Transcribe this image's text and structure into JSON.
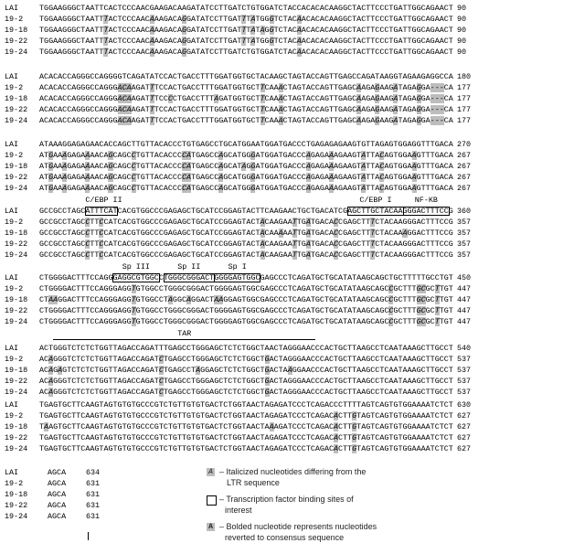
{
  "reference_label": "LAI",
  "colors": {
    "shade": "#bdbdbd"
  },
  "blocks": [
    {
      "rows": [
        {
          "label": "LAI",
          "seq": "TGGAAGGGCTAATTCACTCCCAACGAAGACAAGATATCCTTGATCTGTGGATCTACCACACACAAGGCTACTTCCCTGATTGGCAGAACT",
          "end": "90"
        },
        {
          "label": "19-2",
          "seq": "TGGAAGGGCTAATTTACTCCCAACAAAGACAGGATATCCTTGATTTATGGGTCTACAACACACAAGGCTACTTCCCTGATTGGCAGAACT",
          "end": "90"
        },
        {
          "label": "19-18",
          "seq": "TGGAAGGGCTAATTTACTCCCAACAAAGACAGGATATCCTTGATTTATAGGTCTACAACACACAAGGCTACTTCCCTGATTGGCAGAACT",
          "end": "90"
        },
        {
          "label": "19-22",
          "seq": "TGGAAGGGCTAATTTACTCCCAACAAAGACAGGATATCCTTGATTTATGGGTCTACAACACACAAGGCTACTTCCCTGATTGGCAGAACT",
          "end": "90"
        },
        {
          "label": "19-24",
          "seq": "TGGAAGGGCTAATTTACTCCCAACAAAGACAGGATATCCTTGATCTGTGGATCTACAACACACAAGGCTACTTCCCTGATTGGCAGAACT",
          "end": "90"
        }
      ],
      "annotations": []
    },
    {
      "rows": [
        {
          "label": "LAI",
          "seq": "ACACACCAGGGCCAGGGGTCAGATATCCACTGACCTTTGGATGGTGCTACAAGCTAGTACCAGTTGAGCCAGATAAGGTAGAAGAGGCCA",
          "end": "180"
        },
        {
          "label": "19-2",
          "seq": "ACACACCAGGGCCAGGGACAAGATTTCCACTGACCTTTGGATGGTGCTTCAAACTAGTACCAGTTGAGCAAGAGAAGATAGAGGA---CA",
          "end": "177"
        },
        {
          "label": "19-18",
          "seq": "ACACACCAGGGCCAGGGACAAGATTTCCCCTGACCTTTAGATGGTGCTTCAAACTAGTACCAGTTGAGCAAGAGAAGATAGAGGA---CA",
          "end": "177"
        },
        {
          "label": "19-22",
          "seq": "ACACACCAGGGCCAGGGACAAGATTTCCACTGACCTTTGGATGGTGCTTCAAACTAGTACCAGTTGAGCAAGAGAAGATAGAGGA---CA",
          "end": "177"
        },
        {
          "label": "19-24",
          "seq": "ACACACCAGGGCCAGGGACAAGATTTCCACTGACCTTTGGATGGTGCTTCAAACTAGTACCAGTTGAGCAAGAGAAGATAGAGGA---CA",
          "end": "177"
        }
      ],
      "annotations": []
    },
    {
      "rows": [
        {
          "label": "LAI",
          "seq": "ATAAAGGAGAGAACACCAGCTTGTTACACCCTGTGAGCCTGCATGGAATGGATGACCCTGAGAGAGAAGTGTTAGAGTGGAGGTTTGACA",
          "end": "270"
        },
        {
          "label": "19-2",
          "seq": "ATGAAAGAGAAAACAGCAGCCTGTTACACCCCATGAGCCAGCATGGGATGGATGACCCAGAGAAAGAAGTATTACAGTGGAAGTTTGACA",
          "end": "267"
        },
        {
          "label": "19-18",
          "seq": "ATGAAAGAGAAAACAGCAGCCTGTTACACCCCATGAGCCAGCATAGGATGGATGACCCAGAGAAAGAAGTATTACAGTGGAAGTTTGACA",
          "end": "267"
        },
        {
          "label": "19-22",
          "seq": "ATGAAAGAGAAAACAGCAGCCTGTTACACCCCATGAGCCAGCATGGGATGGATGACCCAGAGAAAGAAGTATTACAGTGGAAGTTTGACA",
          "end": "267"
        },
        {
          "label": "19-24",
          "seq": "ATGAAAGAGAAAACAGCAGCCTGTTACACCCCATGAGCCAGCATGGGATGGATGACCCAGAGAAAGAAGTATTACAGTGGAAGTTTGACA",
          "end": "267"
        }
      ],
      "annotations": []
    },
    {
      "rows": [
        {
          "label": "LAI",
          "seq": "GCCGCCTAGCATTTCATCACGTGGCCCGAGAGCTGCATCCGGAGTACTTCAAGAACTGCTGACATCGAGCTTGCTACAAGGGACTTTCCG",
          "end": "360"
        },
        {
          "label": "19-2",
          "seq": "GCCGCCTAGCCTTCCATCACGTGGCCCGAGAGCTGCATCCGGAGTACTACAAGAATTGATGACACCGAGCTTTCTACAAGGGACTTTCCG",
          "end": "357"
        },
        {
          "label": "19-18",
          "seq": "GCCGCCTAGCCTTCCATCACGTGGCCCGAGAGCTGCATCCGGAGTACTACAAAAATTGATGACACCGAGCTTTCTACAAAGGACTTTCCG",
          "end": "357"
        },
        {
          "label": "19-22",
          "seq": "GCCGCCTAGCCTTCCATCACGTGGCCCGAGAGCTGCATCCGGAGTACTACAAGAATTGATGACACCGAGCTTTCTACAAGGGACTTTCCG",
          "end": "357"
        },
        {
          "label": "19-24",
          "seq": "GCCGCCTAGCCTTCCATCACGTGGCCCGAGAGCTGCATCCGGAGTACTACAAGAATTGATGACACCGAGCTTTCTACAAGGGACTTTCCG",
          "end": "357"
        }
      ],
      "annotations": [
        {
          "name": "C/EBP II",
          "site": "ATTTCAT",
          "style": "box"
        },
        {
          "name": "C/EBP I",
          "site": "AGCTTGCTACAA",
          "style": "box"
        },
        {
          "name": "NF-KB",
          "site": "GGGACTTTCC",
          "style": "box"
        }
      ]
    },
    {
      "rows": [
        {
          "label": "LAI",
          "seq": "CTGGGGACTTTCCAGGGAGGCGTGGCCTGGGCGGGACTGGGGAGTGGCGAGCCCTCAGATGCTGCATATAAGCAGCTGCTTTTTGCCTGT",
          "end": "450"
        },
        {
          "label": "19-2",
          "seq": "CTGGGGACTTTCCAGGGAGGTGTGGCCTGGGCGGGACTGGGGAGTGGCGAGCCCTCAGATGCTGCATATAAGCAGCCGCTTTGCGCTTGT",
          "end": "447"
        },
        {
          "label": "19-18",
          "seq": "CTAAGGACTTTCCAGGGAGGTGTGGCCTAGGCAGGACTAAGGAGTGGCGAGCCCTCAGATGCTGCATATAAGCAGCCGCTTTGCGCTTGT",
          "end": "447"
        },
        {
          "label": "19-22",
          "seq": "CTGGGGACTTTCCAGGGAGGTGTGGCCTGGGCGGGACTGGGGAGTGGCGAGCCCTCAGATGCTGCATATAAGCAGCCGCTTTGCGCTTGT",
          "end": "447"
        },
        {
          "label": "19-24",
          "seq": "CTGGGGACTTTCCAGGGAGGTGTGGCCTGGGCGGGACTGGGGAGTGGCGAGCCCTCAGATGCTGCATATAAGCAGCCGCTTTGCGCTTGT",
          "end": "447"
        }
      ],
      "annotations": [
        {
          "name": "Sp III",
          "site": "GAGGCGTGGC",
          "style": "box"
        },
        {
          "name": "Sp II",
          "site": "TGGGCGGGACT",
          "style": "box"
        },
        {
          "name": "Sp I",
          "site": "GGGGAGTGGC",
          "style": "box"
        }
      ]
    },
    {
      "rows": [
        {
          "label": "LAI",
          "seq": "ACTGGGTCTCTCTGGTTAGACCAGATTTGAGCCTGGGAGCTCTCTGGCTAACTAGGGAACCCACTGCTTAAGCCTCAATAAAGCTTGCCT",
          "end": "540"
        },
        {
          "label": "19-2",
          "seq": "ACAGGGTCTCTCTGGTTAGACCAGATCTGAGCCTGGGAGCTCTCTGGCTGACTAGGGAACCCACTGCTTAAGCCTCAATAAAGCTTGCCT",
          "end": "537"
        },
        {
          "label": "19-18",
          "seq": "ACAGAGTCTCTCTGGTTAGACCAGATCTGAGCCTAGGAGCTCTCTGGCTGACTAAGGAACCCACTGCTTAAGCCTCAATAAAGCTTGCCT",
          "end": "537"
        },
        {
          "label": "19-22",
          "seq": "ACAGGGTCTCTCTGGTTAGACCAGATCTGAGCCTGGGAGCTCTCTGGCTGACTAGGGAACCCACTGCTTAAGCCTCAATAAAGCTTGCCT",
          "end": "537"
        },
        {
          "label": "19-24",
          "seq": "ACAGGGTCTCTCTGGTTAGACCAGATCTGAGCCTGGGAGCTCTCTGGCTGACTAGGGAACCCACTGCTTAAGCCTCAATAAAGCTTGCCT",
          "end": "537"
        }
      ],
      "annotations": [
        {
          "name": "TAR",
          "site": "GGGTCTCTCTGGTTAGACCAGATTTGAGCCTGGGAGCTCTCTGGCTAACTAGGGAAC",
          "style": "line"
        }
      ]
    },
    {
      "rows": [
        {
          "label": "LAI",
          "seq": "TGAGTGCTTCAAGTAGTGTGTGCCCGTCTGTTGTGTGACTCTGGTAACTAGAGATCCCTCAGACCCTTTTAGTCAGTGTGGAAAATCTCT",
          "end": "630"
        },
        {
          "label": "19-2",
          "seq": "TGAGTGCTTCAAGTAGTGTGTGCCCGTCTGTTGTGTGACTCTGGTAACTAGAGATCCCTCAGACACTTGTAGTCAGTGTGGAAAATCTCT",
          "end": "627"
        },
        {
          "label": "19-18",
          "seq": "TAAGTGCTTCAAGTAGTGTGTGCCCGTCTGTTGTGTGACTCTGGTAACTAAAGATCCCTCAGACACTTGTAGTCAGTGTGGAAAATCTCT",
          "end": "627"
        },
        {
          "label": "19-22",
          "seq": "TGAGTGCTTCAAGTAGTGTGTGCCCGTCTGTTGTGTGACTCTGGTAACTAGAGATCCCTCAGACACTTGTAGTCAGTGTGGAAAATCTCT",
          "end": "627"
        },
        {
          "label": "19-24",
          "seq": "TGAGTGCTTCAAGTAGTGTGTGCCCGTCTGTTGTGTGACTCTGGTAACTAGAGATCCCTCAGACACTTGTAGTCAGTGTGGAAAATCTCT",
          "end": "627"
        }
      ],
      "annotations": []
    }
  ],
  "final_block": {
    "rows": [
      {
        "label": "LAI",
        "seq": "AGCA",
        "end": "634"
      },
      {
        "label": "19-2",
        "seq": "AGCA",
        "end": "631"
      },
      {
        "label": "19-18",
        "seq": "AGCA",
        "end": "631"
      },
      {
        "label": "19-22",
        "seq": "AGCA",
        "end": "631"
      },
      {
        "label": "19-24",
        "seq": "AGCA",
        "end": "631"
      }
    ]
  },
  "legend": {
    "items": [
      {
        "swatch": "A",
        "swatch_type": "shaded-italic",
        "line1": "– Italicized nucleotides differing from the",
        "line2": "LTR sequence"
      },
      {
        "swatch": "",
        "swatch_type": "box",
        "line1": "– Transcription factor binding sites of",
        "line2": "interest"
      },
      {
        "swatch": "A",
        "swatch_type": "shaded-bold",
        "line1": "– Bolded nucleotide represents nucleotides",
        "line2": "reverted to consensus sequence"
      }
    ]
  }
}
